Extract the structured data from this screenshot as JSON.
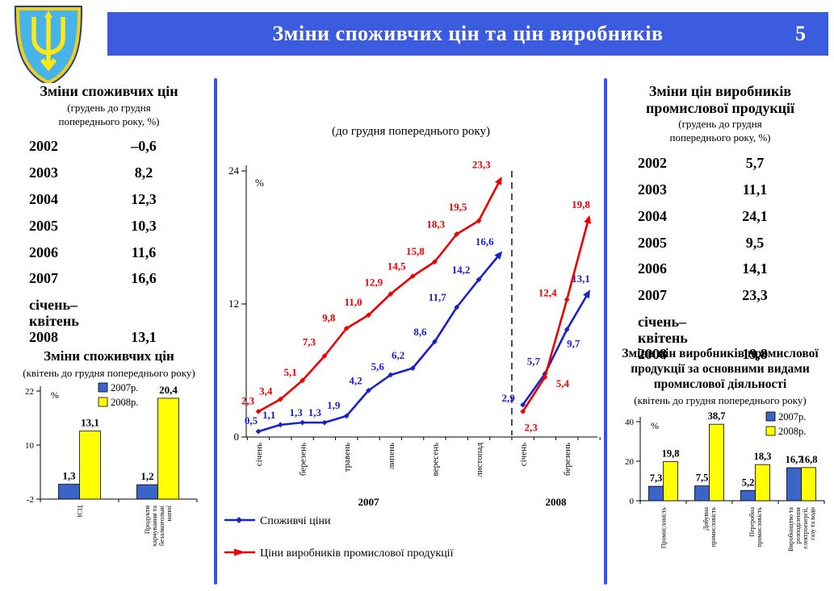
{
  "header": {
    "title": "Зміни споживчих цін та цін виробників",
    "page_number": "5"
  },
  "emblem": {
    "name": "coat-of-arms-of-ukraine"
  },
  "colors": {
    "header_blue": "#3c5ce0",
    "divider_blue": "#3253ef",
    "bar_blue": "#3a64c8",
    "bar_yellow": "#ffff00",
    "line_blue": "#1822cc",
    "line_red": "#ee0000"
  },
  "left_table": {
    "title": "Зміни споживчих цін",
    "subtitle": "(грудень до грудня попереднього року, %)",
    "rows": [
      {
        "year": "2002",
        "value": "–0,6"
      },
      {
        "year": "2003",
        "value": "8,2"
      },
      {
        "year": "2004",
        "value": "12,3"
      },
      {
        "year": "2005",
        "value": "10,3"
      },
      {
        "year": "2006",
        "value": "11,6"
      },
      {
        "year": "2007",
        "value": "16,6"
      },
      {
        "year": "січень–квітень 2008",
        "value": "13,1"
      }
    ]
  },
  "right_table": {
    "title": "Зміни цін виробників промислової продукції",
    "subtitle": "(грудень до грудня попереднього року, %)",
    "rows": [
      {
        "year": "2002",
        "value": "5,7"
      },
      {
        "year": "2003",
        "value": "11,1"
      },
      {
        "year": "2004",
        "value": "24,1"
      },
      {
        "year": "2005",
        "value": "9,5"
      },
      {
        "year": "2006",
        "value": "14,1"
      },
      {
        "year": "2007",
        "value": "23,3"
      },
      {
        "year": "січень–квітень 2008",
        "value": "19,8"
      }
    ]
  },
  "chart_data": [
    {
      "id": "line_chart",
      "type": "line",
      "title": "(до грудня попереднього року)",
      "ylabel": "%",
      "ylim": [
        0,
        24
      ],
      "yticks": [
        0,
        12,
        24
      ],
      "grid": false,
      "legend_position": "bottom-left",
      "x_month_labels": [
        "січень",
        "",
        "березень",
        "",
        "травень",
        "",
        "липень",
        "",
        "вересень",
        "",
        "листопад",
        "",
        "січень",
        "",
        "березень",
        ""
      ],
      "year_labels": [
        "2007",
        "2008"
      ],
      "series": [
        {
          "name": "Споживчі ціни",
          "color_key": "line_blue",
          "segments": [
            {
              "start_index": 0,
              "values": [
                0.5,
                1.1,
                1.3,
                1.3,
                1.9,
                4.2,
                5.6,
                6.2,
                8.6,
                11.7,
                14.2,
                16.6
              ],
              "labels": [
                "0,5",
                "1,1",
                "1,3",
                "1,3",
                "1,9",
                "4,2",
                "5,6",
                "6,2",
                "8,6",
                "11,7",
                "14,2",
                "16,6"
              ]
            },
            {
              "start_index": 12,
              "values": [
                2.9,
                5.7,
                9.7,
                13.1
              ],
              "labels": [
                "2,9",
                "5,7",
                "9,7",
                "13,1"
              ]
            }
          ]
        },
        {
          "name": "Ціни виробників промислової продукції",
          "color_key": "line_red",
          "segments": [
            {
              "start_index": 0,
              "values": [
                2.3,
                3.4,
                5.1,
                7.3,
                9.8,
                11.0,
                12.9,
                14.5,
                15.8,
                18.3,
                19.5,
                23.3
              ],
              "labels": [
                "2,3",
                "3,4",
                "5,1",
                "7,3",
                "9,8",
                "11,0",
                "12,9",
                "14,5",
                "15,8",
                "18,3",
                "19,5",
                "23,3"
              ]
            },
            {
              "start_index": 12,
              "values": [
                2.3,
                5.4,
                12.4,
                19.8
              ],
              "labels": [
                "2,3",
                "5,4",
                "12,4",
                "19,8"
              ]
            }
          ]
        }
      ]
    },
    {
      "id": "cpi_bar_chart",
      "type": "bar",
      "title": "Зміни споживчих цін",
      "subtitle": "(квітень до грудня попереднього року)",
      "ylabel": "%",
      "ylim": [
        -2,
        22
      ],
      "yticks": [
        -2,
        10,
        22
      ],
      "grid": false,
      "legend_position": "top-right",
      "categories": [
        [
          "ІСЦ"
        ],
        [
          "Продукти",
          "харчування та",
          "безалкогольні",
          "напої"
        ]
      ],
      "series": [
        {
          "name": "2007р.",
          "color_key": "bar_blue",
          "values": [
            1.3,
            1.2
          ],
          "labels": [
            "1,3",
            "1,2"
          ]
        },
        {
          "name": "2008р.",
          "color_key": "bar_yellow",
          "values": [
            13.1,
            20.4
          ],
          "labels": [
            "13,1",
            "20,4"
          ]
        }
      ]
    },
    {
      "id": "ppi_bar_chart",
      "type": "bar",
      "title": "Зміни цін виробників промислової продукції за основними видами промислової діяльності",
      "subtitle": "(квітень до грудня попереднього року)",
      "ylabel": "%",
      "ylim": [
        0,
        40
      ],
      "yticks": [
        0,
        20,
        40
      ],
      "grid": false,
      "legend_position": "top-right",
      "categories": [
        [
          "Промисловість"
        ],
        [
          "Добувна",
          "промисловість"
        ],
        [
          "Переробна",
          "промисловість"
        ],
        [
          "Виробництво та",
          "розподілення",
          "електроенергії,",
          "газу та води"
        ]
      ],
      "series": [
        {
          "name": "2007р.",
          "color_key": "bar_blue",
          "values": [
            7.3,
            7.5,
            5.2,
            16.7
          ],
          "labels": [
            "7,3",
            "7,5",
            "5,2",
            "16,7"
          ]
        },
        {
          "name": "2008р.",
          "color_key": "bar_yellow",
          "values": [
            19.8,
            38.7,
            18.3,
            16.8
          ],
          "labels": [
            "19,8",
            "38,7",
            "18,3",
            "16,8"
          ]
        }
      ]
    }
  ]
}
